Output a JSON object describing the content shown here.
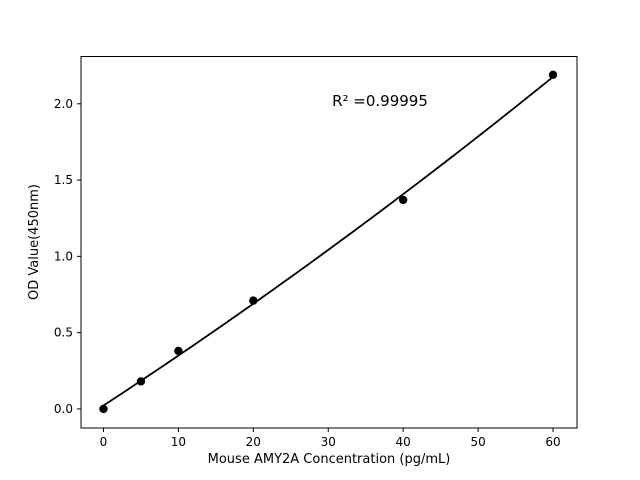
{
  "chart_data": {
    "type": "scatter",
    "xlabel": "Mouse AMY2A Concentration (pg/mL)",
    "ylabel": "OD Value(450nm)",
    "annotation": "R² =0.99995",
    "x": [
      0,
      5,
      10,
      20,
      40,
      60
    ],
    "y": [
      0.0,
      0.18,
      0.38,
      0.71,
      1.37,
      2.19
    ],
    "fit": "quadratic",
    "xticks": [
      0,
      10,
      20,
      30,
      40,
      50,
      60
    ],
    "yticks": [
      0.0,
      0.5,
      1.0,
      1.5,
      2.0
    ],
    "ytick_decimals": 1,
    "xlim": [
      -3,
      63.2
    ],
    "ylim": [
      -0.125,
      2.31
    ],
    "grid": false,
    "legend": "none",
    "colors": {
      "marker": "#000000",
      "line": "#000000",
      "axes": "#000000",
      "background": "#ffffff"
    }
  }
}
